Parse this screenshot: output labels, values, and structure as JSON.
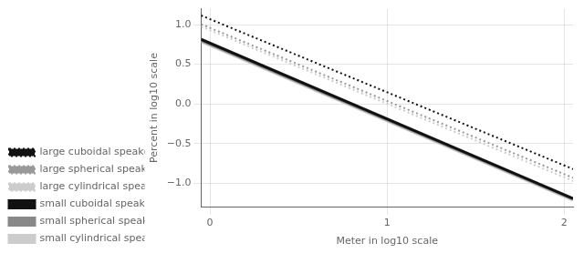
{
  "chart_data": {
    "type": "line",
    "xlabel": "Meter in log10 scale",
    "ylabel": "Percent in log10 scale",
    "x": [
      -0.05,
      2.05
    ],
    "series": [
      {
        "name": "large cuboidal speaker",
        "color": "#111111",
        "line_style": "dotted",
        "values": [
          1.115,
          -0.82
        ]
      },
      {
        "name": "large spherical speaker",
        "color": "#999999",
        "line_style": "dotted",
        "values": [
          1.005,
          -0.93
        ]
      },
      {
        "name": "large cylindrical speaker",
        "color": "#cccccc",
        "line_style": "dotted",
        "values": [
          0.975,
          -0.97
        ]
      },
      {
        "name": "small cuboidal speaker",
        "color": "#111111",
        "line_style": "solid",
        "values": [
          0.815,
          -1.19
        ]
      },
      {
        "name": "small spherical speaker",
        "color": "#888888",
        "line_style": "solid",
        "values": [
          0.8,
          -1.2
        ]
      },
      {
        "name": "small cylindrical speaker",
        "color": "#cccccc",
        "line_style": "solid",
        "values": [
          0.785,
          -1.215
        ]
      }
    ],
    "xlim": [
      -0.05,
      2.05
    ],
    "ylim": [
      -1.3,
      1.2
    ],
    "xticks": [
      0,
      1,
      2
    ],
    "yticks": [
      {
        "value": -1.0,
        "label": "−1.0"
      },
      {
        "value": -0.5,
        "label": "−0.5"
      },
      {
        "value": 0.0,
        "label": "0.0"
      },
      0.5,
      {
        "value": 1.0,
        "label": "1.0"
      }
    ],
    "grid": true,
    "legend": "lower left"
  }
}
